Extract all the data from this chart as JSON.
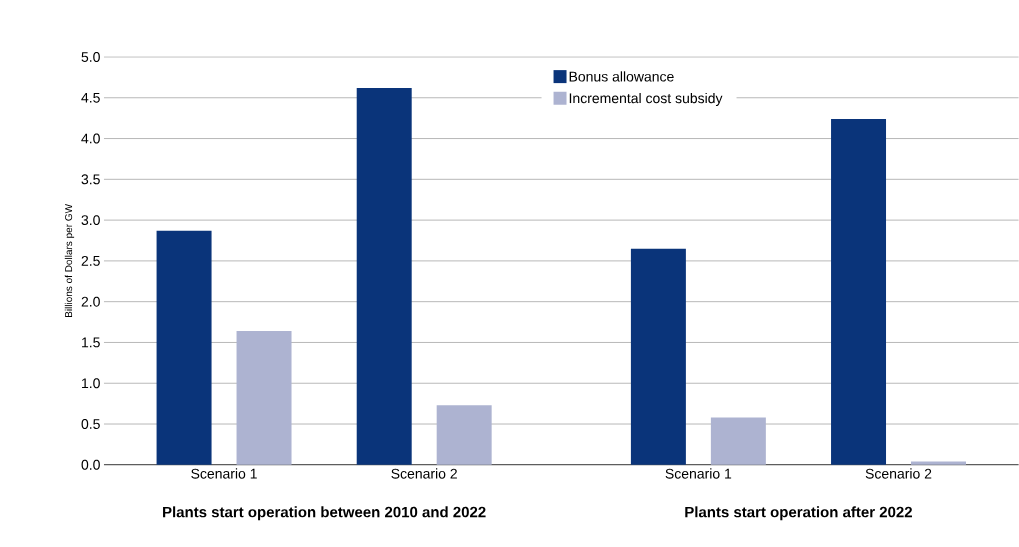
{
  "chart_data": {
    "type": "bar",
    "ylabel": "Billions of Dollars per GW",
    "categories": [
      "Scenario 1",
      "Scenario 2",
      "Scenario 1",
      "Scenario 2"
    ],
    "series": [
      {
        "name": "Bonus allowance",
        "color": "#0a347a",
        "values": [
          2.87,
          4.62,
          2.65,
          4.24
        ]
      },
      {
        "name": "Incremental cost subsidy",
        "color": "#adb3d1",
        "values": [
          1.64,
          0.73,
          0.58,
          0.04
        ]
      }
    ],
    "ylim": [
      0,
      5
    ],
    "yticks": [
      {
        "value": 0,
        "label": "0.0"
      },
      {
        "value": 0.5,
        "label": "0.5"
      },
      {
        "value": 1,
        "label": "1.0"
      },
      {
        "value": 1.5,
        "label": "1.5"
      },
      {
        "value": 2,
        "label": "2.0"
      },
      {
        "value": 2.5,
        "label": "2.5"
      },
      {
        "value": 3,
        "label": "3.0"
      },
      {
        "value": 3.5,
        "label": "3.5"
      },
      {
        "value": 4,
        "label": "4.0"
      },
      {
        "value": 4.5,
        "label": "4.5"
      },
      {
        "value": 5,
        "label": "5.0"
      }
    ],
    "grid": "y",
    "legend": "top",
    "annotations": [
      "Plants start operation between 2010 and 2022",
      "Plants start operation after 2022"
    ]
  }
}
